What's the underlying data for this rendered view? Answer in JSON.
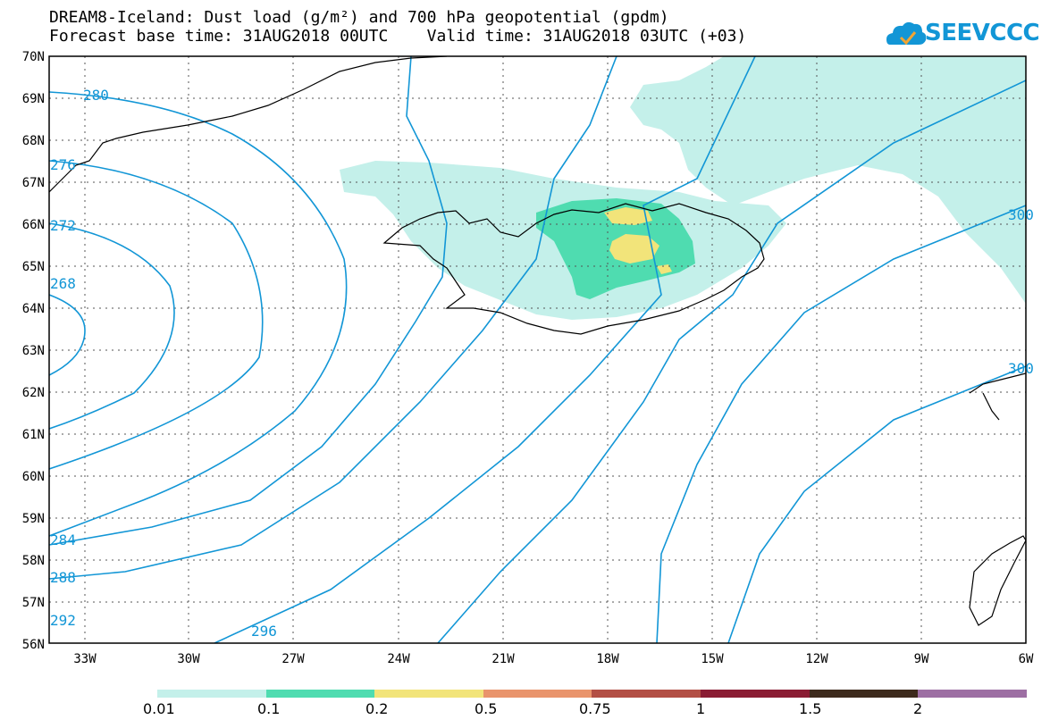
{
  "header": {
    "title_line1": "DREAM8-Iceland: Dust load (g/m²) and 700 hPa geopotential (gpdm)",
    "title_line2": "Forecast base time: 31AUG2018 00UTC    Valid time: 31AUG2018 03UTC (+03)",
    "logo_text": "SEEVCCC"
  },
  "axes": {
    "lon_labels": [
      "33W",
      "30W",
      "27W",
      "24W",
      "21W",
      "18W",
      "15W",
      "12W",
      "9W",
      "6W"
    ],
    "lat_labels": [
      "70N",
      "69N",
      "68N",
      "67N",
      "66N",
      "65N",
      "64N",
      "63N",
      "62N",
      "61N",
      "60N",
      "59N",
      "58N",
      "57N",
      "56N"
    ]
  },
  "contour_labels": [
    "280",
    "276",
    "272",
    "268",
    "284",
    "288",
    "292",
    "296",
    "300",
    "300"
  ],
  "colorbar": {
    "colors": [
      "#c4f0ea",
      "#4fdcb0",
      "#f2e47a",
      "#e9946c",
      "#b34f45",
      "#8a1c33",
      "#3d2a1c",
      "#9d6fa3"
    ],
    "labels": [
      "0.01",
      "0.1",
      "0.2",
      "0.5",
      "0.75",
      "1",
      "1.5",
      "2"
    ]
  },
  "colors": {
    "contour": "#1296d6",
    "coast": "#000000",
    "grid": "#555555"
  }
}
